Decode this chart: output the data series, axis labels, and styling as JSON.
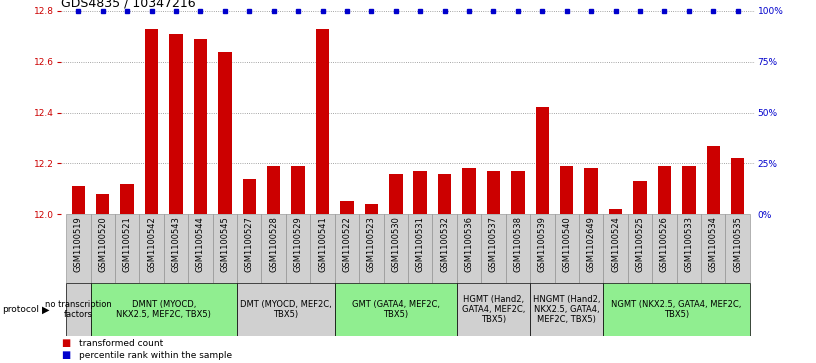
{
  "title": "GDS4835 / 10347216",
  "samples": [
    "GSM1100519",
    "GSM1100520",
    "GSM1100521",
    "GSM1100542",
    "GSM1100543",
    "GSM1100544",
    "GSM1100545",
    "GSM1100527",
    "GSM1100528",
    "GSM1100529",
    "GSM1100541",
    "GSM1100522",
    "GSM1100523",
    "GSM1100530",
    "GSM1100531",
    "GSM1100532",
    "GSM1100536",
    "GSM1100537",
    "GSM1100538",
    "GSM1100539",
    "GSM1100540",
    "GSM1102649",
    "GSM1100524",
    "GSM1100525",
    "GSM1100526",
    "GSM1100533",
    "GSM1100534",
    "GSM1100535"
  ],
  "bar_values": [
    12.11,
    12.08,
    12.12,
    12.73,
    12.71,
    12.69,
    12.64,
    12.14,
    12.19,
    12.19,
    12.73,
    12.05,
    12.04,
    12.16,
    12.17,
    12.16,
    12.18,
    12.17,
    12.17,
    12.42,
    12.19,
    12.18,
    12.02,
    12.13,
    12.19,
    12.19,
    12.27,
    12.22
  ],
  "percentile_values": [
    100,
    100,
    100,
    100,
    100,
    100,
    100,
    100,
    100,
    100,
    100,
    100,
    100,
    100,
    100,
    100,
    100,
    100,
    100,
    100,
    100,
    100,
    100,
    100,
    100,
    100,
    100,
    100
  ],
  "protocol_groups": [
    {
      "label": "no transcription\nfactors",
      "indices": [
        0
      ],
      "color": "#d0d0d0"
    },
    {
      "label": "DMNT (MYOCD,\nNKX2.5, MEF2C, TBX5)",
      "indices": [
        1,
        2,
        3,
        4,
        5,
        6
      ],
      "color": "#90ee90"
    },
    {
      "label": "DMT (MYOCD, MEF2C,\nTBX5)",
      "indices": [
        7,
        8,
        9,
        10
      ],
      "color": "#d0d0d0"
    },
    {
      "label": "GMT (GATA4, MEF2C,\nTBX5)",
      "indices": [
        11,
        12,
        13,
        14,
        15
      ],
      "color": "#90ee90"
    },
    {
      "label": "HGMT (Hand2,\nGATA4, MEF2C,\nTBX5)",
      "indices": [
        16,
        17,
        18
      ],
      "color": "#d0d0d0"
    },
    {
      "label": "HNGMT (Hand2,\nNKX2.5, GATA4,\nMEF2C, TBX5)",
      "indices": [
        19,
        20,
        21
      ],
      "color": "#d0d0d0"
    },
    {
      "label": "NGMT (NKX2.5, GATA4, MEF2C,\nTBX5)",
      "indices": [
        22,
        23,
        24,
        25,
        26,
        27
      ],
      "color": "#90ee90"
    }
  ],
  "ylim": [
    12.0,
    12.8
  ],
  "yticks_left": [
    12.0,
    12.2,
    12.4,
    12.6,
    12.8
  ],
  "yticks_right": [
    0,
    25,
    50,
    75,
    100
  ],
  "bar_color": "#cc0000",
  "dot_color": "#0000cc",
  "grid_color": "#888888",
  "title_fontsize": 9,
  "tick_fontsize": 6.5,
  "label_fontsize": 6
}
